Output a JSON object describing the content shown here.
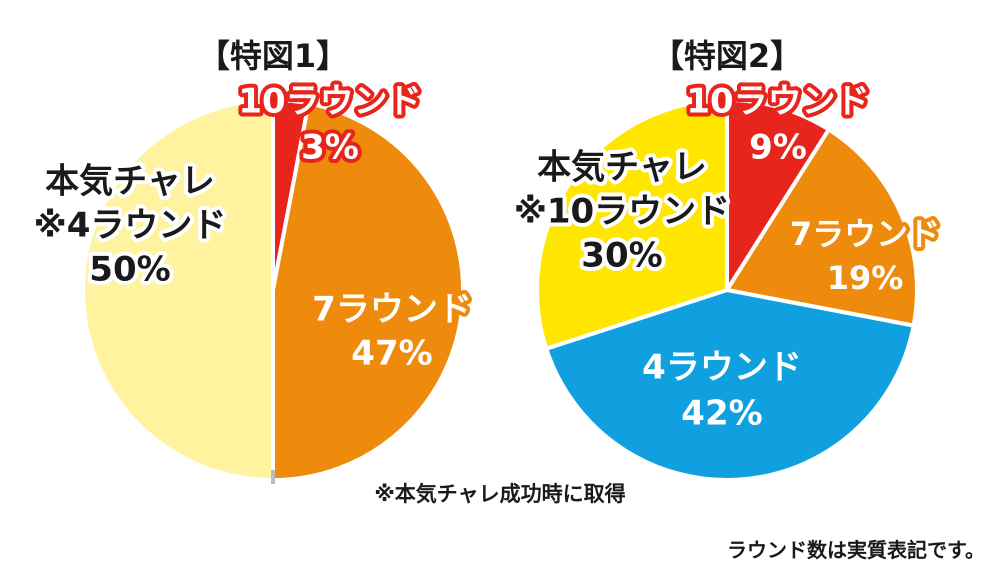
{
  "chart_data": [
    {
      "type": "pie",
      "title": "【特図1】",
      "slices": [
        {
          "label": "10ラウンド",
          "value": 3,
          "value_text": "3%",
          "color": "#e8251d",
          "text_color": "#ffffff",
          "outline": "#e8251d"
        },
        {
          "label": "7ラウンド",
          "value": 47,
          "value_text": "47%",
          "color": "#ee8b0c",
          "text_color": "#ffffff",
          "outline": "#ee8b0c"
        },
        {
          "label": "本気チャレ\n※4ラウンド",
          "value": 50,
          "value_text": "50%",
          "color": "#fff3a0",
          "text_color": "#1a1a1a",
          "outline": "#ffffff"
        }
      ]
    },
    {
      "type": "pie",
      "title": "【特図2】",
      "slices": [
        {
          "label": "10ラウンド",
          "value": 9,
          "value_text": "9%",
          "color": "#e8251d",
          "text_color": "#ffffff",
          "outline": "#e8251d"
        },
        {
          "label": "7ラウンド",
          "value": 19,
          "value_text": "19%",
          "color": "#ee8b0c",
          "text_color": "#ffffff",
          "outline": "#ee8b0c"
        },
        {
          "label": "4ラウンド",
          "value": 42,
          "value_text": "42%",
          "color": "#10a0e0",
          "text_color": "#ffffff",
          "outline": "#10a0e0"
        },
        {
          "label": "本気チャレ\n※10ラウンド",
          "value": 30,
          "value_text": "30%",
          "color": "#ffe600",
          "text_color": "#1a1a1a",
          "outline": "#ffffff"
        }
      ]
    }
  ],
  "notes": {
    "footnote": "※本気チャレ成功時に取得",
    "disclaimer": "ラウンド数は実質表記です。"
  }
}
